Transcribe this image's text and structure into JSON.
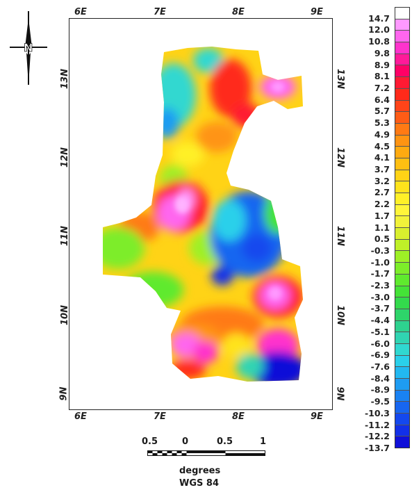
{
  "map": {
    "x_ticks": [
      "6E",
      "7E",
      "8E",
      "9E"
    ],
    "y_ticks": [
      "13N",
      "12N",
      "11N",
      "10N",
      "9N"
    ],
    "north_label": "N"
  },
  "legend": {
    "labels": [
      "14.7",
      "12.0",
      "10.8",
      "9.8",
      "8.9",
      "8.1",
      "7.2",
      "6.4",
      "5.7",
      "5.3",
      "4.9",
      "4.5",
      "4.1",
      "3.7",
      "3.2",
      "2.7",
      "2.2",
      "1.7",
      "1.1",
      "0.5",
      "-0.3",
      "-1.0",
      "-1.7",
      "-2.3",
      "-3.0",
      "-3.7",
      "-4.4",
      "-5.1",
      "-6.0",
      "-6.9",
      "-7.6",
      "-8.4",
      "-8.9",
      "-9.5",
      "-10.3",
      "-11.2",
      "-12.2",
      "-13.7"
    ],
    "colors": [
      "#ffffff",
      "#ff99ff",
      "#ff66ee",
      "#ff33cc",
      "#ff1a99",
      "#ff0066",
      "#ff1a33",
      "#ff2a1a",
      "#ff4419",
      "#ff5c16",
      "#ff7a14",
      "#ff9412",
      "#ffaa10",
      "#ffbf12",
      "#ffd316",
      "#ffe31c",
      "#fff028",
      "#fff53a",
      "#f2f23a",
      "#d9ef2e",
      "#bff028",
      "#9ef026",
      "#7ded2a",
      "#5fea2e",
      "#44e337",
      "#33da4c",
      "#2ed46a",
      "#2ed28f",
      "#30d4b2",
      "#30d8d0",
      "#2ad0ea",
      "#22b8f0",
      "#1e9cf2",
      "#1a82f2",
      "#1766f0",
      "#1448ee",
      "#1230e8",
      "#1010d8"
    ]
  },
  "scale_bar": {
    "tick_labels": [
      "0.5",
      "0",
      "0.5",
      "1"
    ],
    "unit": "degrees",
    "datum": "WGS 84"
  }
}
